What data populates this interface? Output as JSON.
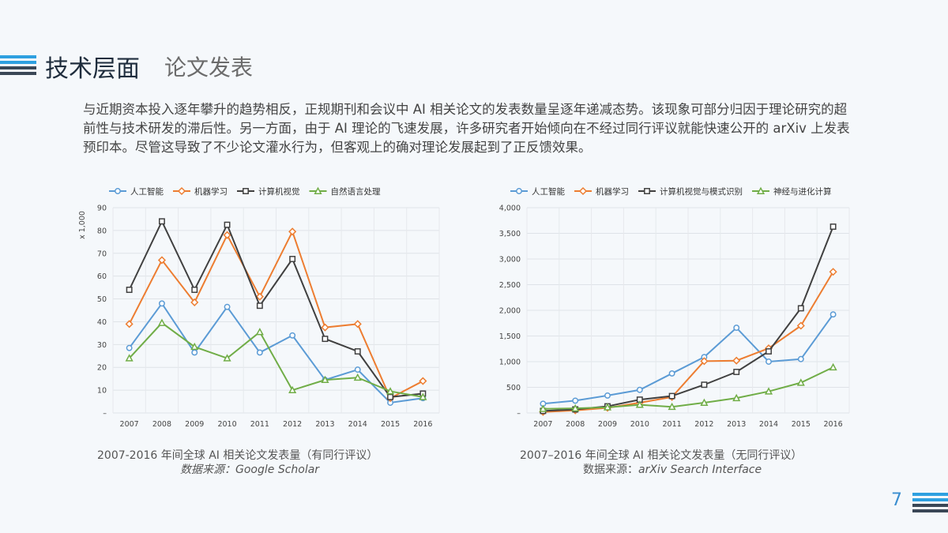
{
  "header": {
    "title": "技术层面",
    "subtitle": "论文发表"
  },
  "intro": "与近期资本投入逐年攀升的趋势相反，正规期刊和会议中 AI 相关论文的发表数量呈逐年递减态势。该现象可部分归因于理论研究的超前性与技术研发的滞后性。另一方面，由于 AI 理论的飞速发展，许多研究者开始倾向在不经过同行评议就能快速公开的 arXiv 上发表预印本。尽管这导致了不少论文灌水行为，但客观上的确对理论发展起到了正反馈效果。",
  "captions": {
    "left_title": "2007-2016 年间全球 AI 相关论文发表量（有同行评议）",
    "left_source": "数据来源：Google Scholar",
    "right_title": "2007–2016 年间全球 AI 相关论文发表量（无同行评议）",
    "right_source_prefix": "数据来源：",
    "right_source_name": "arXiv Search Interface"
  },
  "page_number": "7",
  "colors": {
    "blue": "#5b9bd5",
    "orange": "#ed7d31",
    "dark": "#404040",
    "green": "#70ad47",
    "accent": "#2ea0e0"
  },
  "chart_data": [
    {
      "type": "line",
      "ylabel": "x 1,000",
      "ylim": [
        0,
        90
      ],
      "yticks": [
        0,
        10,
        20,
        30,
        40,
        50,
        60,
        70,
        80,
        90
      ],
      "ytick_labels": [
        "–",
        "10",
        "20",
        "30",
        "40",
        "50",
        "60",
        "70",
        "80",
        "90"
      ],
      "x": [
        "2007",
        "2008",
        "2009",
        "2010",
        "2011",
        "2012",
        "2013",
        "2014",
        "2015",
        "2016"
      ],
      "grid": true,
      "legend": "top",
      "series": [
        {
          "name": "人工智能",
          "marker": "circle",
          "values": [
            28.5,
            48,
            26.5,
            46.5,
            26.5,
            34,
            14.5,
            19,
            4.5,
            6.5
          ]
        },
        {
          "name": "机器学习",
          "marker": "diamond",
          "values": [
            39,
            67,
            48.5,
            78,
            51,
            79.5,
            37.5,
            39,
            6.5,
            14
          ]
        },
        {
          "name": "计算机视觉",
          "marker": "square",
          "values": [
            54,
            84,
            54,
            82.5,
            47,
            67.5,
            32.5,
            27,
            7,
            8.5
          ]
        },
        {
          "name": "自然语言处理",
          "marker": "triangle",
          "values": [
            24,
            39.5,
            29,
            24,
            35.5,
            10,
            14.5,
            15.5,
            9.5,
            7
          ]
        }
      ]
    },
    {
      "type": "line",
      "ylim": [
        0,
        4000
      ],
      "yticks": [
        0,
        500,
        1000,
        1500,
        2000,
        2500,
        3000,
        3500,
        4000
      ],
      "ytick_labels": [
        "–",
        "500",
        "1,000",
        "1,500",
        "2,000",
        "2,500",
        "3,000",
        "3,500",
        "4,000"
      ],
      "x": [
        "2007",
        "2008",
        "2009",
        "2010",
        "2011",
        "2012",
        "2013",
        "2014",
        "2015",
        "2016"
      ],
      "grid": true,
      "legend": "top",
      "series": [
        {
          "name": "人工智能",
          "marker": "circle",
          "values": [
            180,
            240,
            340,
            450,
            770,
            1090,
            1660,
            1000,
            1050,
            1920
          ]
        },
        {
          "name": "机器学习",
          "marker": "diamond",
          "values": [
            20,
            50,
            100,
            200,
            310,
            1010,
            1020,
            1260,
            1700,
            2750
          ]
        },
        {
          "name": "计算机视觉与模式识别",
          "marker": "square",
          "values": [
            40,
            70,
            130,
            260,
            330,
            550,
            800,
            1200,
            2040,
            3630
          ]
        },
        {
          "name": "神经与进化计算",
          "marker": "triangle",
          "values": [
            80,
            90,
            110,
            160,
            120,
            200,
            290,
            420,
            590,
            890
          ]
        }
      ]
    }
  ]
}
